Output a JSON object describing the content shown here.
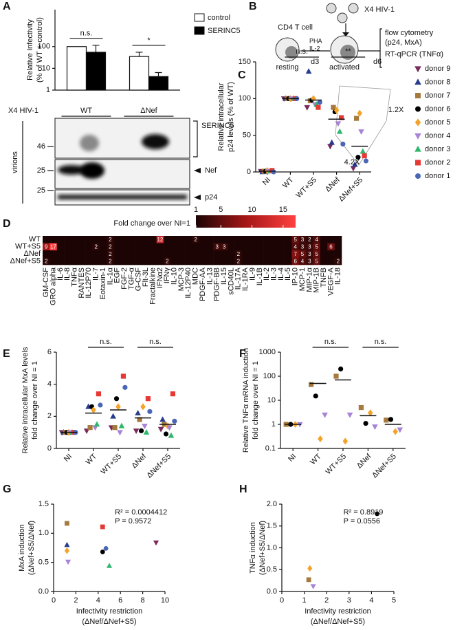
{
  "blot": {
    "side_label": "virions",
    "markers": [
      46,
      25,
      25
    ],
    "bands": [
      "SERINC5",
      "Nef",
      "p24"
    ]
  },
  "diagram": {
    "panel": "B",
    "cell": "CD4 T cell",
    "states": [
      "resting",
      "activated"
    ],
    "stimulus": [
      "PHA",
      "IL-2"
    ],
    "days": [
      "d3",
      "d6"
    ],
    "virus": "X4 HIV-1",
    "readouts": [
      "flow cytometry",
      "(p24, MxA)",
      "RT-qPCR (TNFα)"
    ]
  },
  "chart_data": [
    {
      "type": "bar",
      "panel": "A",
      "ylabel": [
        "Relative Infectivity",
        "(% of WT + control)"
      ],
      "category_title": "X4 HIV-1",
      "categories": [
        "WT",
        "ΔNef"
      ],
      "log": true,
      "ylim": [
        1,
        5000
      ],
      "yticks": [
        1,
        10,
        100
      ],
      "legend": "right",
      "series": [
        {
          "name": "control",
          "color": "#ffffff",
          "values": [
            100,
            35
          ],
          "errors": [
            null,
            20
          ]
        },
        {
          "name": "SERINC5",
          "color": "#000000",
          "values": [
            55,
            4.2
          ],
          "errors": [
            60,
            2.2
          ]
        }
      ],
      "significance": [
        "n.s.",
        "*"
      ]
    },
    {
      "type": "dot",
      "panel": "C",
      "ylabel": [
        "Relative intracellular",
        "p24 levels (% of WT)"
      ],
      "categories": [
        "NI",
        "WT",
        "WT+S5",
        "ΔNef",
        "ΔNef+S5"
      ],
      "ylim": [
        0,
        150
      ],
      "yticks": [
        0,
        50,
        100,
        150
      ],
      "legend": "right",
      "means": [
        1,
        100,
        98,
        72,
        35
      ],
      "significance": [
        null,
        null,
        "n.s.",
        null,
        "**"
      ],
      "fold_labels": [
        "1.2X",
        "4.2X"
      ],
      "series": [
        {
          "name": "donor 9",
          "color": "#7a2a5c",
          "marker": "triangle-down",
          "values": [
            1,
            100,
            88,
            35,
            5
          ]
        },
        {
          "name": "donor 8",
          "color": "#283c8e",
          "marker": "triangle-up",
          "values": [
            0,
            100,
            137,
            40,
            10
          ]
        },
        {
          "name": "donor 7",
          "color": "#a57a3c",
          "marker": "square",
          "values": [
            1,
            100,
            97,
            88,
            73
          ]
        },
        {
          "name": "donor 6",
          "color": "#000000",
          "marker": "circle",
          "values": [
            1,
            100,
            98,
            82,
            20
          ]
        },
        {
          "name": "donor 5",
          "color": "#f4a32a",
          "marker": "diamond",
          "values": [
            2,
            100,
            100,
            84,
            80
          ]
        },
        {
          "name": "donor 4",
          "color": "#a883d6",
          "marker": "triangle-down",
          "values": [
            1,
            100,
            92,
            66,
            55
          ]
        },
        {
          "name": "donor 3",
          "color": "#2eb86c",
          "marker": "triangle-up",
          "values": [
            1,
            100,
            92,
            55,
            28
          ]
        },
        {
          "name": "donor 2",
          "color": "#e53935",
          "marker": "square",
          "values": [
            2,
            100,
            88,
            74,
            22
          ]
        },
        {
          "name": "donor 1",
          "color": "#4a66b5",
          "marker": "circle",
          "values": [
            0,
            100,
            95,
            38,
            15
          ]
        }
      ]
    },
    {
      "type": "heatmap",
      "panel": "D",
      "colorbar_title": "Fold change over NI=1",
      "clim": [
        1,
        17
      ],
      "cticks": [
        1,
        5,
        10,
        15
      ],
      "colors": [
        "#1c0404",
        "#a51616",
        "#ff4040"
      ],
      "rows": [
        "WT",
        "WT+S5",
        "ΔNef",
        "ΔNef+S5"
      ],
      "columns": [
        "GM-CSF",
        "GRO alpha",
        "IL-6",
        "IL-8",
        "TNFα",
        "RANTES",
        "IL-12P70",
        "IL-7",
        "Eotaxin-1",
        "IL-1α",
        "EGF",
        "FGF-2",
        "TGF-α",
        "G-CSF",
        "Flt-3L",
        "Fractalkine",
        "IFNα2",
        "IFNγ",
        "IL-10",
        "MCP-3",
        "IL-12P40",
        "MDC",
        "PDGF-AA",
        "IL-13",
        "PDGF-BB",
        "IL-15",
        "sCD40L",
        "IL-17A",
        "IL-1RA",
        "IL-9",
        "IL-1B",
        "IL-2",
        "IL-3",
        "IL-4",
        "IL-5",
        "IP-10",
        "MCP-1",
        "MIP-1α",
        "MIP-1B",
        "TNFB",
        "VEGF-A",
        "IL-18"
      ],
      "values": [
        [
          1,
          1,
          1,
          1,
          1,
          1,
          1,
          1,
          1,
          2,
          1,
          1,
          1,
          1,
          1,
          1,
          12,
          1,
          1,
          1,
          1,
          2,
          1,
          1,
          1,
          1,
          1,
          1,
          1,
          1,
          1,
          1,
          1,
          1,
          1,
          5,
          3,
          2,
          4,
          1,
          1,
          1
        ],
        [
          9,
          17,
          1,
          1,
          1,
          1,
          1,
          2,
          1,
          2,
          1,
          1,
          1,
          1,
          1,
          1,
          1,
          1,
          1,
          1,
          1,
          1,
          1,
          1,
          3,
          3,
          1,
          1,
          1,
          1,
          1,
          1,
          1,
          1,
          1,
          4,
          3,
          3,
          5,
          1,
          6,
          1
        ],
        [
          1,
          1,
          1,
          1,
          1,
          1,
          1,
          1,
          1,
          2,
          1,
          1,
          1,
          1,
          1,
          1,
          1,
          1,
          1,
          1,
          1,
          1,
          1,
          1,
          1,
          1,
          1,
          2,
          1,
          1,
          1,
          1,
          1,
          1,
          1,
          7,
          5,
          3,
          5,
          1,
          1,
          1
        ],
        [
          2,
          1,
          1,
          1,
          1,
          1,
          1,
          1,
          1,
          2,
          1,
          1,
          1,
          1,
          1,
          1,
          1,
          2,
          1,
          1,
          1,
          1,
          1,
          1,
          1,
          1,
          1,
          2,
          1,
          1,
          1,
          1,
          1,
          1,
          1,
          6,
          4,
          3,
          5,
          1,
          1,
          2
        ]
      ]
    },
    {
      "type": "dot",
      "panel": "E",
      "ylabel": [
        "Relative intracellular MxA levels",
        "fold change over NI = 1"
      ],
      "categories": [
        "NI",
        "WT",
        "WT+S5",
        "ΔNef",
        "ΔNef+S5"
      ],
      "ylim": [
        0,
        6
      ],
      "yticks": [
        0,
        2,
        4,
        6
      ],
      "means": [
        1,
        2.2,
        2.4,
        1.9,
        1.5
      ],
      "significance": [
        null,
        null,
        "n.s.",
        null,
        "n.s."
      ],
      "series": [
        {
          "color": "#7a2a5c",
          "marker": "triangle-down",
          "values": [
            1,
            1.1,
            1.3,
            1.1,
            1.2
          ]
        },
        {
          "color": "#283c8e",
          "marker": "triangle-up",
          "values": [
            1,
            2.6,
            2.0,
            2.2,
            1.8
          ]
        },
        {
          "color": "#a57a3c",
          "marker": "square",
          "values": [
            1,
            1.3,
            1.3,
            1.8,
            1.5
          ]
        },
        {
          "color": "#000000",
          "marker": "circle",
          "values": [
            1,
            2.6,
            3.1,
            1.1,
            0.9
          ]
        },
        {
          "color": "#f4a32a",
          "marker": "diamond",
          "values": [
            1,
            2.4,
            2.6,
            2.6,
            1.4
          ]
        },
        {
          "color": "#a883d6",
          "marker": "triangle-down",
          "values": [
            1,
            1.3,
            1.0,
            1.4,
            1.3
          ]
        },
        {
          "color": "#2eb86c",
          "marker": "triangle-up",
          "values": [
            1,
            1.5,
            1.4,
            1.0,
            0.8
          ]
        },
        {
          "color": "#e53935",
          "marker": "square",
          "values": [
            1,
            3.4,
            4.5,
            3.1,
            3.4
          ]
        },
        {
          "color": "#4a66b5",
          "marker": "circle",
          "values": [
            1,
            2.7,
            3.8,
            2.3,
            1.7
          ]
        }
      ]
    },
    {
      "type": "dot",
      "panel": "F",
      "ylabel": [
        "Relative TNFα mRNA induction",
        "fold change over NI = 1"
      ],
      "categories": [
        "NI",
        "WT",
        "WT+S5",
        "ΔNef",
        "ΔNef+S5"
      ],
      "log": true,
      "ylim": [
        0.1,
        1000
      ],
      "yticks": [
        0.1,
        1,
        10,
        100,
        1000
      ],
      "means": [
        1,
        50,
        70,
        2.3,
        1
      ],
      "significance": [
        null,
        null,
        "n.s.",
        null,
        "n.s."
      ],
      "series": [
        {
          "color": "#a57a3c",
          "marker": "square",
          "values": [
            1,
            45,
            100,
            5,
            1.5
          ]
        },
        {
          "color": "#000000",
          "marker": "circle",
          "values": [
            1,
            15,
            200,
            1.1,
            1.6
          ]
        },
        {
          "color": "#f4a32a",
          "marker": "diamond",
          "values": [
            1,
            0.25,
            0.2,
            3,
            0.5
          ]
        },
        {
          "color": "#a883d6",
          "marker": "triangle-down",
          "values": [
            1,
            2.5,
            2.5,
            0.8,
            0.6
          ]
        }
      ]
    },
    {
      "type": "scatter",
      "panel": "G",
      "ylabel": [
        "MxA induction",
        "(ΔNef+S5/ΔNef)"
      ],
      "xlabel": [
        "Infectivity restriction",
        "(ΔNef/ΔNef+S5)"
      ],
      "xlim": [
        0,
        10
      ],
      "xticks": [
        0,
        2,
        4,
        6,
        8,
        10
      ],
      "ylim": [
        0,
        1.5
      ],
      "yticks": [
        {
          "value": 0,
          "label": "0.0"
        },
        0.5,
        {
          "value": 1,
          "label": "1.0"
        },
        1.5
      ],
      "stats": [
        "R² = 0.0004412",
        "P = 0.9572"
      ],
      "series": [
        {
          "color": "#a57a3c",
          "marker": "square",
          "x": [
            1.2
          ],
          "values": [
            1.17
          ]
        },
        {
          "color": "#283c8e",
          "marker": "triangle-up",
          "x": [
            1.2
          ],
          "values": [
            0.8
          ]
        },
        {
          "color": "#f4a32a",
          "marker": "diamond",
          "x": [
            1.2
          ],
          "values": [
            0.7
          ]
        },
        {
          "color": "#a883d6",
          "marker": "triangle-down",
          "x": [
            1.3
          ],
          "values": [
            0.51
          ]
        },
        {
          "color": "#e53935",
          "marker": "square",
          "x": [
            4.4
          ],
          "values": [
            1.11
          ]
        },
        {
          "color": "#4a66b5",
          "marker": "circle",
          "x": [
            4.7
          ],
          "values": [
            0.74
          ]
        },
        {
          "color": "#000000",
          "marker": "circle",
          "x": [
            4.4
          ],
          "values": [
            0.68
          ]
        },
        {
          "color": "#2eb86c",
          "marker": "triangle-up",
          "x": [
            5.0
          ],
          "values": [
            0.44
          ]
        },
        {
          "color": "#7a2a5c",
          "marker": "triangle-down",
          "x": [
            9.2
          ],
          "values": [
            0.84
          ]
        }
      ]
    },
    {
      "type": "scatter",
      "panel": "H",
      "ylabel": [
        "TNFα induction",
        "(ΔNef+S5/ΔNef)"
      ],
      "xlabel": [
        "Infectivity restriction",
        "(ΔNef/ΔNef+S5)"
      ],
      "xlim": [
        0,
        5
      ],
      "xticks": [
        0,
        1,
        2,
        3,
        4,
        5
      ],
      "ylim": [
        0,
        2
      ],
      "yticks": [
        {
          "value": 0,
          "label": "0.0"
        },
        0.5,
        {
          "value": 1,
          "label": "1.0"
        },
        1.5,
        {
          "value": 2,
          "label": "2.0"
        }
      ],
      "stats": [
        "R² = 0.8919",
        "P = 0.0556"
      ],
      "series": [
        {
          "color": "#000000",
          "marker": "circle",
          "x": [
            4.25
          ],
          "values": [
            1.78
          ]
        },
        {
          "color": "#f4a32a",
          "marker": "diamond",
          "x": [
            1.25
          ],
          "values": [
            0.53
          ]
        },
        {
          "color": "#a57a3c",
          "marker": "square",
          "x": [
            1.2
          ],
          "values": [
            0.27
          ]
        },
        {
          "color": "#a883d6",
          "marker": "triangle-down",
          "x": [
            1.4
          ],
          "values": [
            0.12
          ]
        }
      ]
    }
  ]
}
